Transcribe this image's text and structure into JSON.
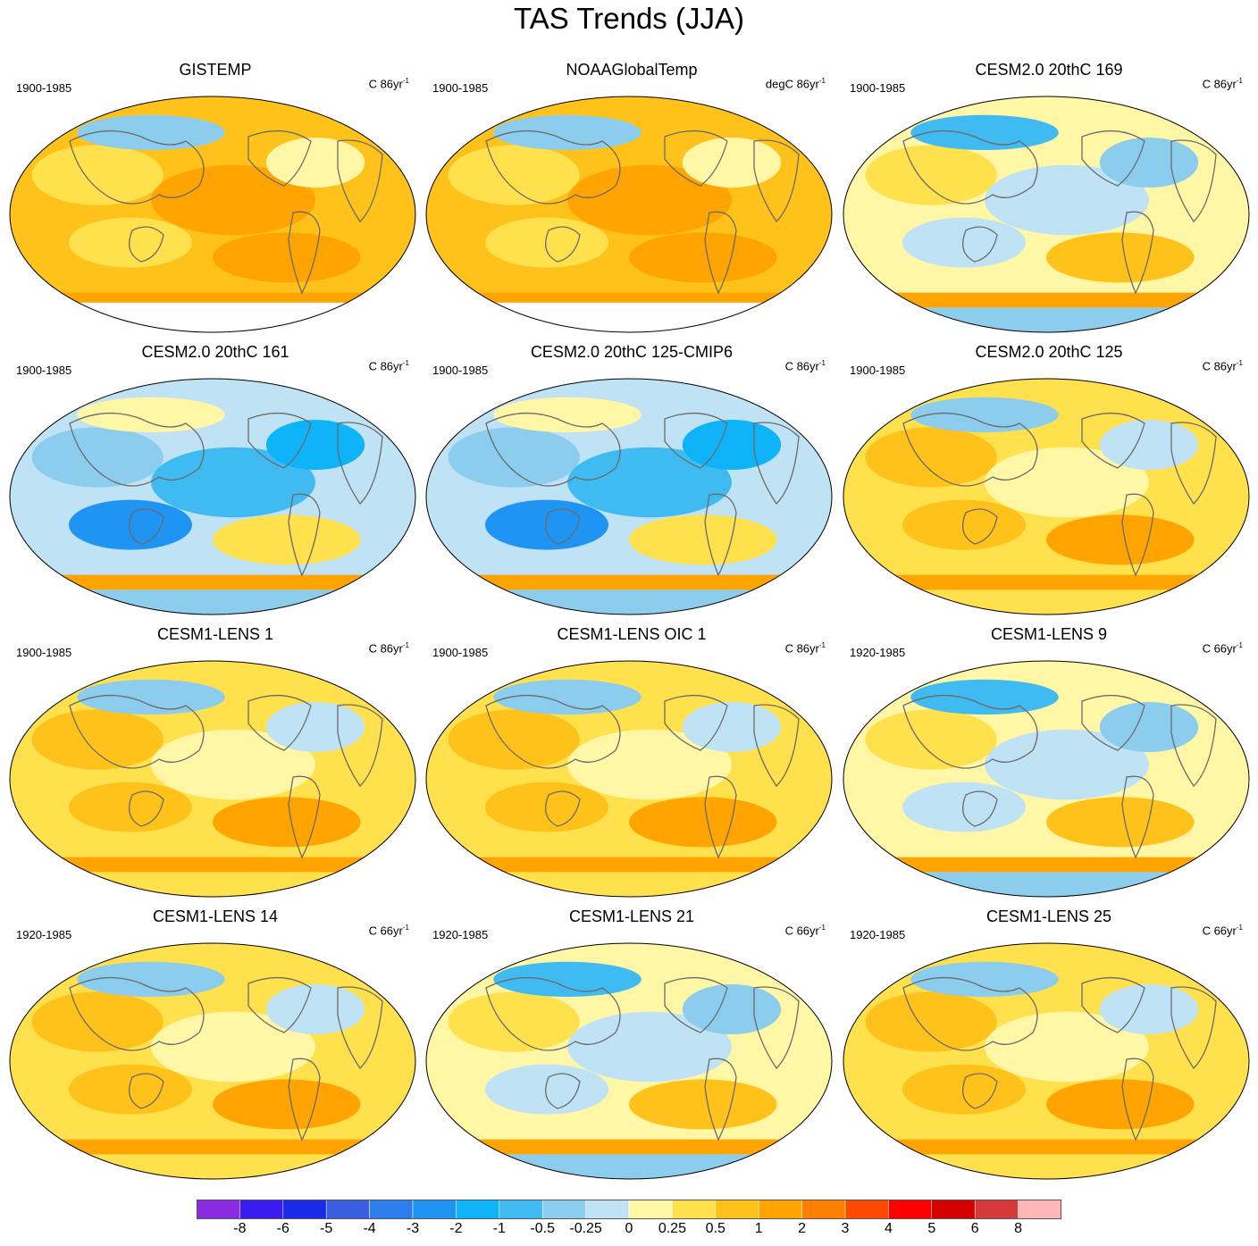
{
  "figure": {
    "title": "TAS Trends (JJA)"
  },
  "panels": [
    {
      "title": "GISTEMP",
      "period": "1900-1985",
      "units_prefix": "C 86yr",
      "units_exp": "-1",
      "palette": "obs_warm",
      "missing_south": true
    },
    {
      "title": "NOAAGlobalTemp",
      "period": "1900-1985",
      "units_prefix": "degC 86yr",
      "units_exp": "-1",
      "palette": "obs_warm",
      "missing_south": true
    },
    {
      "title": "CESM2.0 20thC 169",
      "period": "1900-1985",
      "units_prefix": "C 86yr",
      "units_exp": "-1",
      "palette": "mixed_cool"
    },
    {
      "title": "CESM2.0 20thC 161",
      "period": "1900-1985",
      "units_prefix": "C 86yr",
      "units_exp": "-1",
      "palette": "cool"
    },
    {
      "title": "CESM2.0 20thC 125-CMIP6",
      "period": "1900-1985",
      "units_prefix": "C 86yr",
      "units_exp": "-1",
      "palette": "cool"
    },
    {
      "title": "CESM2.0 20thC 125",
      "period": "1900-1985",
      "units_prefix": "C 86yr",
      "units_exp": "-1",
      "palette": "mixed_warm"
    },
    {
      "title": "CESM1-LENS 1",
      "period": "1900-1985",
      "units_prefix": "C 86yr",
      "units_exp": "-1",
      "palette": "mixed_warm"
    },
    {
      "title": "CESM1-LENS OIC 1",
      "period": "1900-1985",
      "units_prefix": "C 86yr",
      "units_exp": "-1",
      "palette": "mixed_warm"
    },
    {
      "title": "CESM1-LENS 9",
      "period": "1920-1985",
      "units_prefix": "C 66yr",
      "units_exp": "-1",
      "palette": "mixed_cool"
    },
    {
      "title": "CESM1-LENS 14",
      "period": "1920-1985",
      "units_prefix": "C 66yr",
      "units_exp": "-1",
      "palette": "mixed_warm"
    },
    {
      "title": "CESM1-LENS 21",
      "period": "1920-1985",
      "units_prefix": "C 66yr",
      "units_exp": "-1",
      "palette": "mixed_cool"
    },
    {
      "title": "CESM1-LENS 25",
      "period": "1920-1985",
      "units_prefix": "C 66yr",
      "units_exp": "-1",
      "palette": "mixed_warm"
    }
  ],
  "colorbar": {
    "labels": [
      "-8",
      "-6",
      "-5",
      "-4",
      "-3",
      "-2",
      "-1",
      "-0.5",
      "-0.25",
      "0",
      "0.25",
      "0.5",
      "1",
      "2",
      "3",
      "4",
      "5",
      "6",
      "8"
    ],
    "colors": [
      "#8a2be2",
      "#3a1aec",
      "#1a2be8",
      "#3a5ee0",
      "#2e7ded",
      "#1f94f2",
      "#0fb3f8",
      "#3fbbf2",
      "#8ccdee",
      "#bfe3f5",
      "#fff7a6",
      "#ffe04d",
      "#ffc21a",
      "#ffa400",
      "#ff7f00",
      "#ff4a00",
      "#ff0000",
      "#d40000",
      "#d43a3a",
      "#ffb6b6"
    ]
  }
}
